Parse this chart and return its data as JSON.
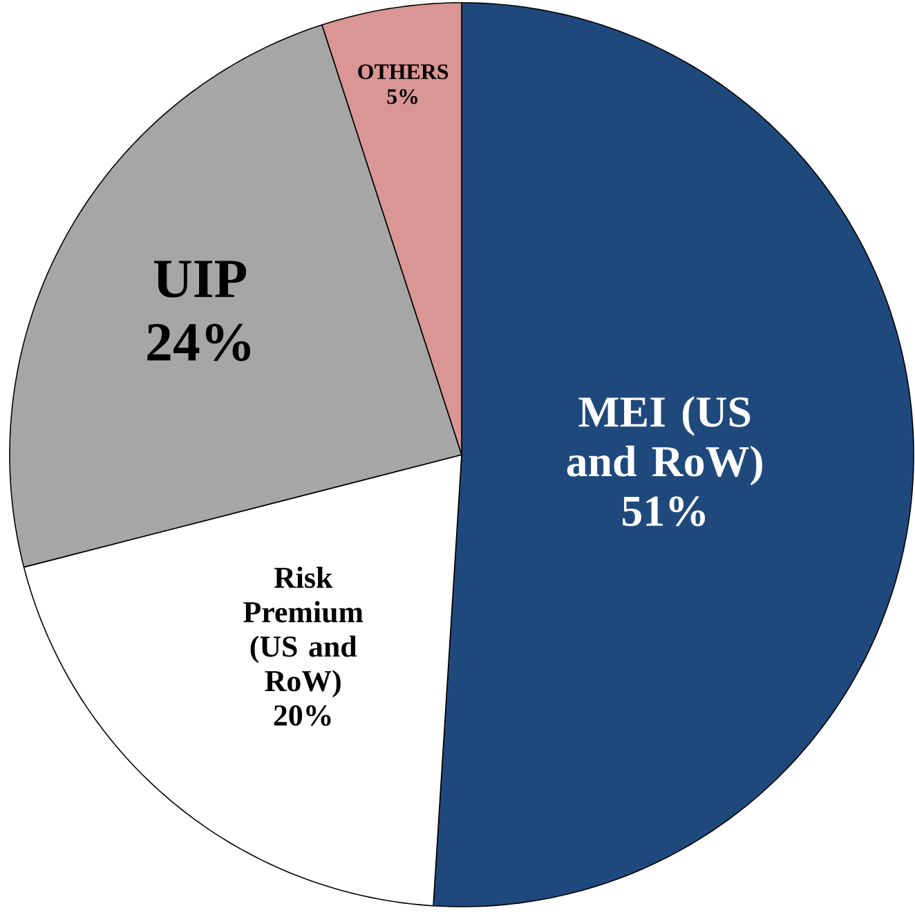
{
  "chart_data": {
    "type": "pie",
    "categories": [
      "MEI (US and RoW)",
      "Risk Premium (US and RoW)",
      "UIP",
      "OTHERS"
    ],
    "values": [
      51,
      20,
      24,
      5
    ],
    "colors": [
      "#1f497d",
      "#ffffff",
      "#a6a6a6",
      "#d99694"
    ],
    "value_labels": [
      "51%",
      "20%",
      "24%",
      "5%"
    ]
  }
}
